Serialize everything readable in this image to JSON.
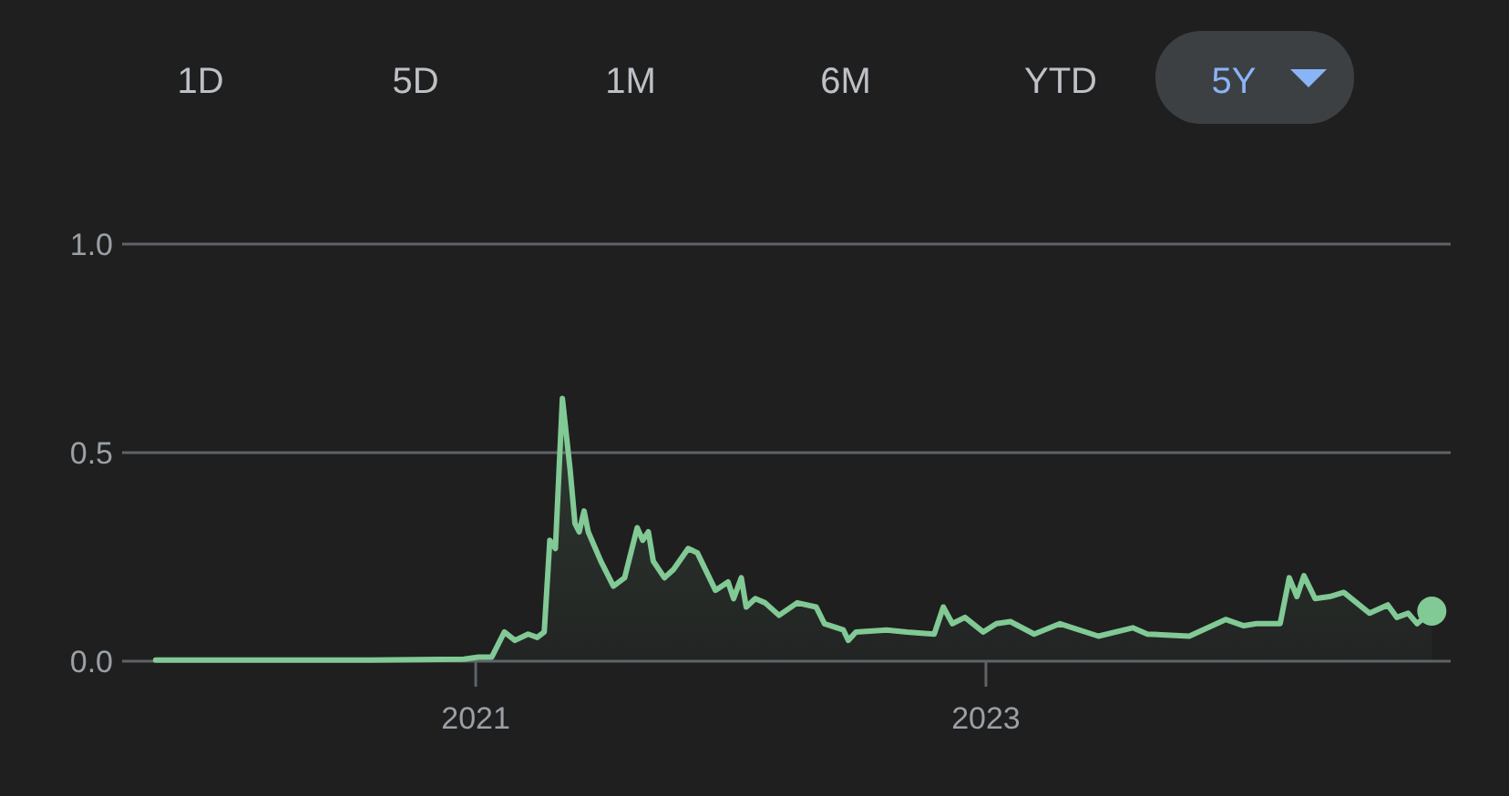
{
  "chart_data": {
    "type": "area",
    "annotations": [
      "1D",
      "5D",
      "1M",
      "6M",
      "YTD",
      "5Y"
    ],
    "x": [
      "2019-10-01",
      "2020-03-01",
      "2020-08-01",
      "2020-12-15",
      "2021-01-05",
      "2021-01-24",
      "2021-02-11",
      "2021-02-26",
      "2021-03-17",
      "2021-03-30",
      "2021-04-09",
      "2021-04-17",
      "2021-04-25",
      "2021-05-05",
      "2021-05-16",
      "2021-05-23",
      "2021-05-29",
      "2021-06-05",
      "2021-06-11",
      "2021-06-29",
      "2021-07-17",
      "2021-08-02",
      "2021-08-20",
      "2021-08-28",
      "2021-09-05",
      "2021-09-12",
      "2021-09-28",
      "2021-10-11",
      "2021-11-01",
      "2021-11-14",
      "2021-12-10",
      "2021-12-28",
      "2022-01-05",
      "2022-01-16",
      "2022-01-23",
      "2022-02-05",
      "2022-02-19",
      "2022-03-11",
      "2022-04-06",
      "2022-05-03",
      "2022-05-15",
      "2022-06-11",
      "2022-06-18",
      "2022-06-29",
      "2022-08-12",
      "2022-09-10",
      "2022-10-19",
      "2022-11-01",
      "2022-11-14",
      "2022-12-02",
      "2022-12-28",
      "2023-01-16",
      "2023-02-05",
      "2023-03-11",
      "2023-04-17",
      "2023-06-11",
      "2023-07-30",
      "2023-08-20",
      "2023-10-19",
      "2023-12-10",
      "2024-01-05",
      "2024-01-23",
      "2024-02-26",
      "2024-03-10",
      "2024-03-21",
      "2024-03-31",
      "2024-04-16",
      "2024-05-07",
      "2024-05-27",
      "2024-07-03",
      "2024-07-29",
      "2024-08-11",
      "2024-08-27",
      "2024-09-09",
      "2024-09-30"
    ],
    "series": [
      {
        "color": "#81c995",
        "values": [
          0.003,
          0.003,
          0.003,
          0.005,
          0.01,
          0.01,
          0.07,
          0.05,
          0.065,
          0.057,
          0.07,
          0.29,
          0.27,
          0.63,
          0.46,
          0.33,
          0.31,
          0.36,
          0.31,
          0.24,
          0.18,
          0.2,
          0.32,
          0.29,
          0.31,
          0.24,
          0.2,
          0.22,
          0.27,
          0.26,
          0.17,
          0.19,
          0.15,
          0.2,
          0.13,
          0.15,
          0.14,
          0.11,
          0.14,
          0.13,
          0.09,
          0.075,
          0.05,
          0.07,
          0.075,
          0.07,
          0.065,
          0.13,
          0.09,
          0.105,
          0.07,
          0.09,
          0.095,
          0.065,
          0.09,
          0.06,
          0.08,
          0.065,
          0.06,
          0.1,
          0.085,
          0.09,
          0.09,
          0.2,
          0.155,
          0.205,
          0.15,
          0.155,
          0.165,
          0.115,
          0.135,
          0.105,
          0.115,
          0.09,
          0.12
        ]
      }
    ],
    "xlim": [
      "2019-08-14",
      "2024-10-27"
    ],
    "xticks": [
      {
        "value": "2021-01-01",
        "label": "2021"
      },
      {
        "value": "2023-01-01",
        "label": "2023"
      }
    ],
    "ylim": [
      0,
      1
    ],
    "yticks": [
      {
        "value": 0,
        "label": "0.0"
      },
      {
        "value": 0.5,
        "label": "0.5"
      },
      {
        "value": 1,
        "label": "1.0"
      }
    ],
    "grid": "y"
  }
}
